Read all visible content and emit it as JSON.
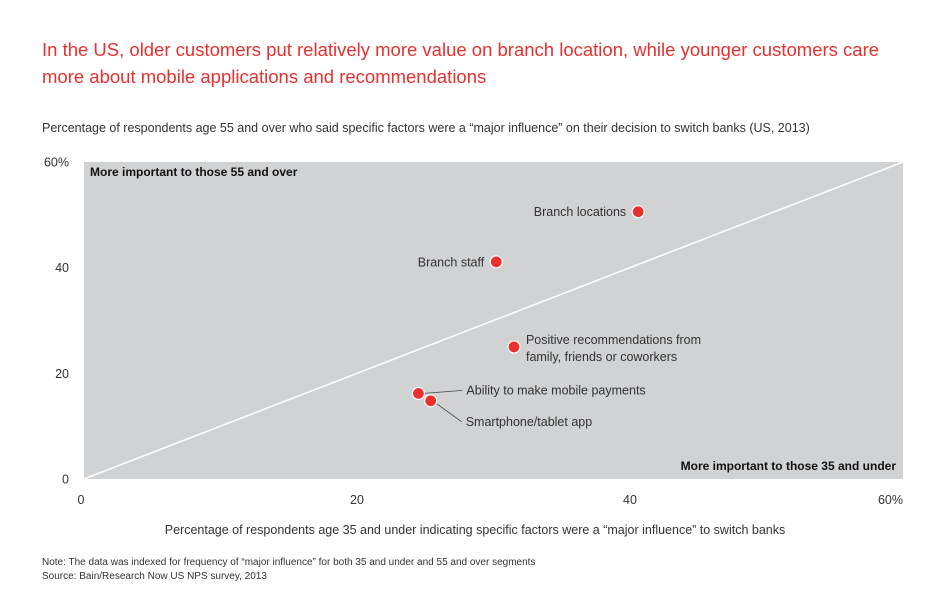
{
  "header": {
    "title": "In the US, older customers put relatively more value on branch location, while younger customers care more about mobile applications and recommendations",
    "subtitle": "Percentage of respondents age 55 and over who said specific factors were a “major influence” on their decision to switch banks (US, 2013)"
  },
  "footer": {
    "note": "Note: The data was indexed for frequency of “major influence” for both 35 and under and 55 and over segments",
    "source": "Source: Bain/Research Now US NPS survey, 2013"
  },
  "chart_data": {
    "type": "scatter",
    "title": "",
    "xlabel": "Percentage of respondents age 35 and under indicating specific factors were a “major influence” to switch banks",
    "ylabel": "",
    "xlim": [
      0,
      60
    ],
    "ylim": [
      0,
      60
    ],
    "x_ticks": [
      "0",
      "20",
      "40",
      "60%"
    ],
    "y_ticks": [
      "0",
      "20",
      "40",
      "60%"
    ],
    "grid": false,
    "reference_line": "diagonal y = x",
    "region_labels": {
      "upper_left": "More important to those 55 and over",
      "lower_right": "More important to those 35 and under"
    },
    "colors": {
      "background": "#d1d2d4",
      "point": "#e8312f",
      "diagonal": "#ffffff",
      "title": "#e8312f"
    },
    "points": [
      {
        "label": "Branch locations",
        "x": 40.6,
        "y": 50.6
      },
      {
        "label": "Branch staff",
        "x": 30.2,
        "y": 41.1
      },
      {
        "label": "Positive recommendations from family, friends or coworkers",
        "label_lines": [
          "Positive recommendations from",
          "family, friends or coworkers"
        ],
        "x": 31.5,
        "y": 25.0
      },
      {
        "label": "Ability to make mobile payments",
        "x": 24.5,
        "y": 16.2
      },
      {
        "label": "Smartphone/tablet app",
        "x": 25.4,
        "y": 14.8
      }
    ]
  }
}
